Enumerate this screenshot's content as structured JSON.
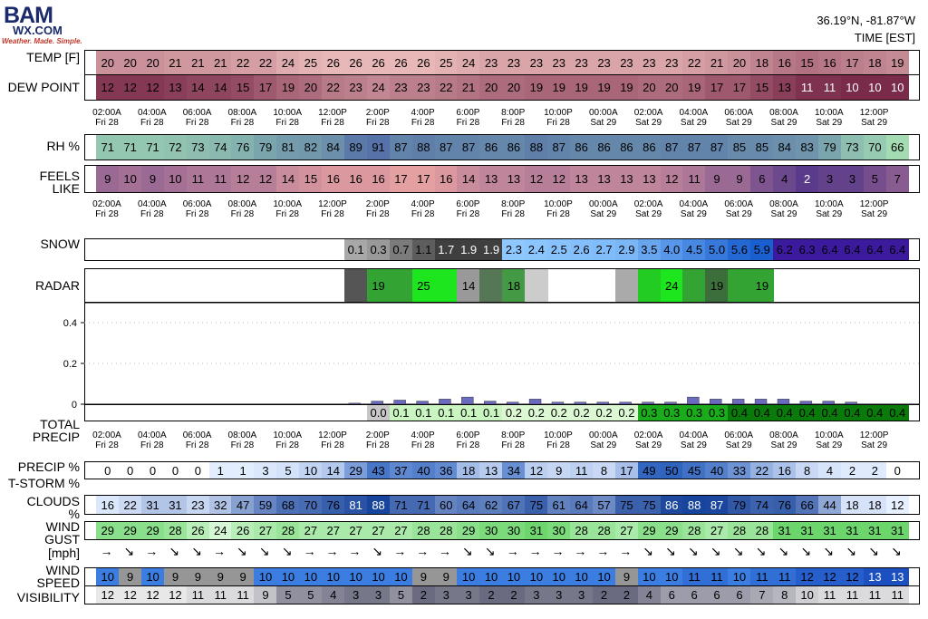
{
  "logo": {
    "top": "BAM",
    "middle": "WX.COM",
    "tagline": "Weather. Made. Simple."
  },
  "header": {
    "location": "36.19°N, -81.87°W",
    "time_label": "TIME [EST]"
  },
  "labels": {
    "temp": "TEMP [F]",
    "dew": "DEW POINT",
    "rh": "RH %",
    "feels1": "FEELS",
    "feels2": "LIKE",
    "snow": "SNOW",
    "radar": "RADAR",
    "precip1": "TOTAL",
    "precip2": "PRECIP",
    "precip_pct": "PRECIP %",
    "tstorm": "T-STORM %",
    "clouds1": "CLOUDS",
    "clouds2": "%",
    "gust1": "WIND",
    "gust2": "GUST",
    "mph": "[mph]",
    "speed1": "WIND",
    "speed2": "SPEED",
    "vis": "VISIBILITY"
  },
  "chart_data": {
    "type": "table",
    "time_axis": [
      [
        "02:00A",
        "Fri 28"
      ],
      [
        "04:00A",
        "Fri 28"
      ],
      [
        "06:00A",
        "Fri 28"
      ],
      [
        "08:00A",
        "Fri 28"
      ],
      [
        "10:00A",
        "Fri 28"
      ],
      [
        "12:00P",
        "Fri 28"
      ],
      [
        "2:00P",
        "Fri 28"
      ],
      [
        "4:00P",
        "Fri 28"
      ],
      [
        "6:00P",
        "Fri 28"
      ],
      [
        "8:00P",
        "Fri 28"
      ],
      [
        "10:00P",
        "Fri 28"
      ],
      [
        "00:00A",
        "Sat 29"
      ],
      [
        "02:00A",
        "Sat 29"
      ],
      [
        "04:00A",
        "Sat 29"
      ],
      [
        "06:00A",
        "Sat 29"
      ],
      [
        "08:00A",
        "Sat 29"
      ],
      [
        "10:00A",
        "Sat 29"
      ],
      [
        "12:00P",
        "Sat 29"
      ]
    ],
    "temp": [
      20,
      20,
      20,
      21,
      21,
      21,
      22,
      22,
      24,
      25,
      26,
      26,
      26,
      26,
      26,
      25,
      24,
      23,
      23,
      23,
      23,
      23,
      23,
      23,
      23,
      23,
      22,
      21,
      20,
      18,
      16,
      15,
      16,
      17,
      18,
      19
    ],
    "dew": [
      12,
      12,
      12,
      13,
      14,
      14,
      15,
      17,
      19,
      20,
      22,
      23,
      24,
      23,
      23,
      22,
      21,
      20,
      20,
      19,
      19,
      19,
      19,
      19,
      20,
      20,
      19,
      17,
      17,
      15,
      13,
      11,
      11,
      10,
      10,
      10
    ],
    "rh": [
      71,
      71,
      71,
      72,
      73,
      74,
      76,
      79,
      81,
      82,
      84,
      89,
      91,
      87,
      88,
      87,
      87,
      86,
      86,
      88,
      87,
      86,
      86,
      86,
      86,
      87,
      87,
      87,
      85,
      85,
      84,
      83,
      79,
      73,
      70,
      66
    ],
    "feels": [
      9,
      10,
      9,
      10,
      11,
      11,
      12,
      12,
      14,
      15,
      16,
      16,
      16,
      17,
      17,
      16,
      14,
      13,
      13,
      12,
      12,
      13,
      13,
      13,
      13,
      12,
      11,
      9,
      9,
      6,
      4,
      2,
      3,
      3,
      5,
      7
    ],
    "snow": [
      null,
      null,
      null,
      null,
      null,
      null,
      null,
      null,
      null,
      null,
      null,
      0.1,
      0.3,
      0.7,
      1.1,
      1.7,
      1.9,
      1.9,
      2.3,
      2.4,
      2.5,
      2.6,
      2.7,
      2.9,
      3.5,
      4.0,
      4.5,
      5.0,
      5.6,
      5.9,
      6.2,
      6.3,
      6.4,
      6.4,
      6.4,
      6.4
    ],
    "radar": [
      null,
      null,
      null,
      null,
      null,
      null,
      null,
      null,
      null,
      null,
      null,
      "",
      19,
      "",
      25,
      "",
      14,
      "",
      18,
      "",
      null,
      null,
      null,
      "",
      "",
      24,
      "",
      19,
      "",
      19,
      null,
      null,
      null,
      null,
      null,
      null
    ],
    "radar_colors": [
      "#fff",
      "#fff",
      "#fff",
      "#fff",
      "#fff",
      "#fff",
      "#fff",
      "#fff",
      "#fff",
      "#fff",
      "#fff",
      "#555555",
      "#33a433",
      "#33a433",
      "#1ee61e",
      "#1ee61e",
      "#999999",
      "#557755",
      "#449944",
      "#cccccc",
      "#fff",
      "#fff",
      "#fff",
      "#aaaaaa",
      "#22cc22",
      "#1ee61e",
      "#33a433",
      "#3c6e3c",
      "#33a433",
      "#33a433",
      "#fff",
      "#fff",
      "#fff",
      "#fff",
      "#fff",
      "#fff"
    ],
    "precip_bars": [
      0,
      0,
      0,
      0,
      0,
      0,
      0,
      0,
      0,
      0,
      0,
      0.005,
      0.015,
      0.02,
      0.015,
      0.025,
      0.035,
      0.015,
      0.01,
      0.025,
      0.01,
      0.01,
      0.01,
      0.01,
      0.01,
      0.01,
      0.035,
      0.025,
      0.025,
      0.025,
      0.025,
      0.015,
      0.015,
      0.01,
      0,
      0
    ],
    "precip_axis": {
      "ticks": [
        0,
        0.2,
        0.4
      ],
      "ylim": [
        0,
        0.48
      ]
    },
    "total_precip": [
      null,
      null,
      null,
      null,
      null,
      null,
      null,
      null,
      null,
      null,
      null,
      null,
      0.0,
      0.1,
      0.1,
      0.1,
      0.1,
      0.1,
      0.2,
      0.2,
      0.2,
      0.2,
      0.2,
      0.2,
      0.3,
      0.3,
      0.3,
      0.3,
      0.4,
      0.4,
      0.4,
      0.4,
      0.4,
      0.4,
      0.4,
      0.4
    ],
    "precip_pct": [
      0,
      0,
      0,
      0,
      0,
      1,
      1,
      3,
      5,
      10,
      14,
      29,
      43,
      37,
      40,
      36,
      18,
      13,
      34,
      12,
      9,
      11,
      8,
      17,
      49,
      50,
      45,
      40,
      33,
      22,
      16,
      8,
      4,
      2,
      2,
      0
    ],
    "clouds": [
      16,
      22,
      31,
      31,
      23,
      32,
      47,
      59,
      68,
      70,
      76,
      81,
      88,
      71,
      71,
      60,
      64,
      62,
      67,
      75,
      61,
      64,
      57,
      75,
      75,
      86,
      88,
      87,
      79,
      74,
      76,
      66,
      44,
      18,
      18,
      12
    ],
    "gust": [
      29,
      29,
      29,
      28,
      26,
      24,
      26,
      27,
      28,
      27,
      27,
      27,
      27,
      27,
      28,
      28,
      29,
      30,
      30,
      31,
      30,
      28,
      28,
      27,
      29,
      29,
      28,
      27,
      28,
      28,
      31,
      31,
      31,
      31,
      31,
      31
    ],
    "wind_dir": [
      "→",
      "↘",
      "→",
      "↘",
      "↘",
      "→",
      "↘",
      "↘",
      "↘",
      "→",
      "→",
      "→",
      "↘",
      "→",
      "→",
      "→",
      "↘",
      "↘",
      "→",
      "→",
      "→",
      "→",
      "→",
      "→",
      "↘",
      "↘",
      "↘",
      "↘",
      "↘",
      "↘",
      "↘",
      "↘",
      "↘",
      "↘",
      "↘",
      "↘"
    ],
    "speed": [
      10,
      9,
      10,
      9,
      9,
      9,
      9,
      10,
      10,
      10,
      10,
      10,
      10,
      10,
      9,
      9,
      10,
      10,
      10,
      10,
      10,
      10,
      10,
      9,
      10,
      10,
      11,
      11,
      10,
      11,
      11,
      12,
      12,
      12,
      13,
      13
    ],
    "visibility": [
      12,
      12,
      12,
      12,
      11,
      11,
      11,
      9,
      5,
      5,
      4,
      3,
      3,
      5,
      2,
      3,
      3,
      2,
      2,
      3,
      3,
      3,
      2,
      2,
      4,
      6,
      6,
      6,
      6,
      7,
      8,
      10,
      11,
      11,
      11,
      11
    ]
  },
  "colors": {
    "temp_high": "#e8b8b8",
    "temp_low": "#7a2b4a",
    "rh_low": "#a3dcb3",
    "rh_high": "#5672a8",
    "feels_low": "#5a3a8a",
    "feels_high": "#e4a0a0",
    "snow_low": "#b0b0b0",
    "snow_mid": "#3f3f3f",
    "snow_blue": "#1a5fcf",
    "snow_purple": "#3c1a9e",
    "total_green": "#0a7a0a",
    "bar": "#6a6ac0",
    "gust": "#9be49b",
    "speed_blue": "#1c60d0",
    "vis_gray": "#888888"
  }
}
